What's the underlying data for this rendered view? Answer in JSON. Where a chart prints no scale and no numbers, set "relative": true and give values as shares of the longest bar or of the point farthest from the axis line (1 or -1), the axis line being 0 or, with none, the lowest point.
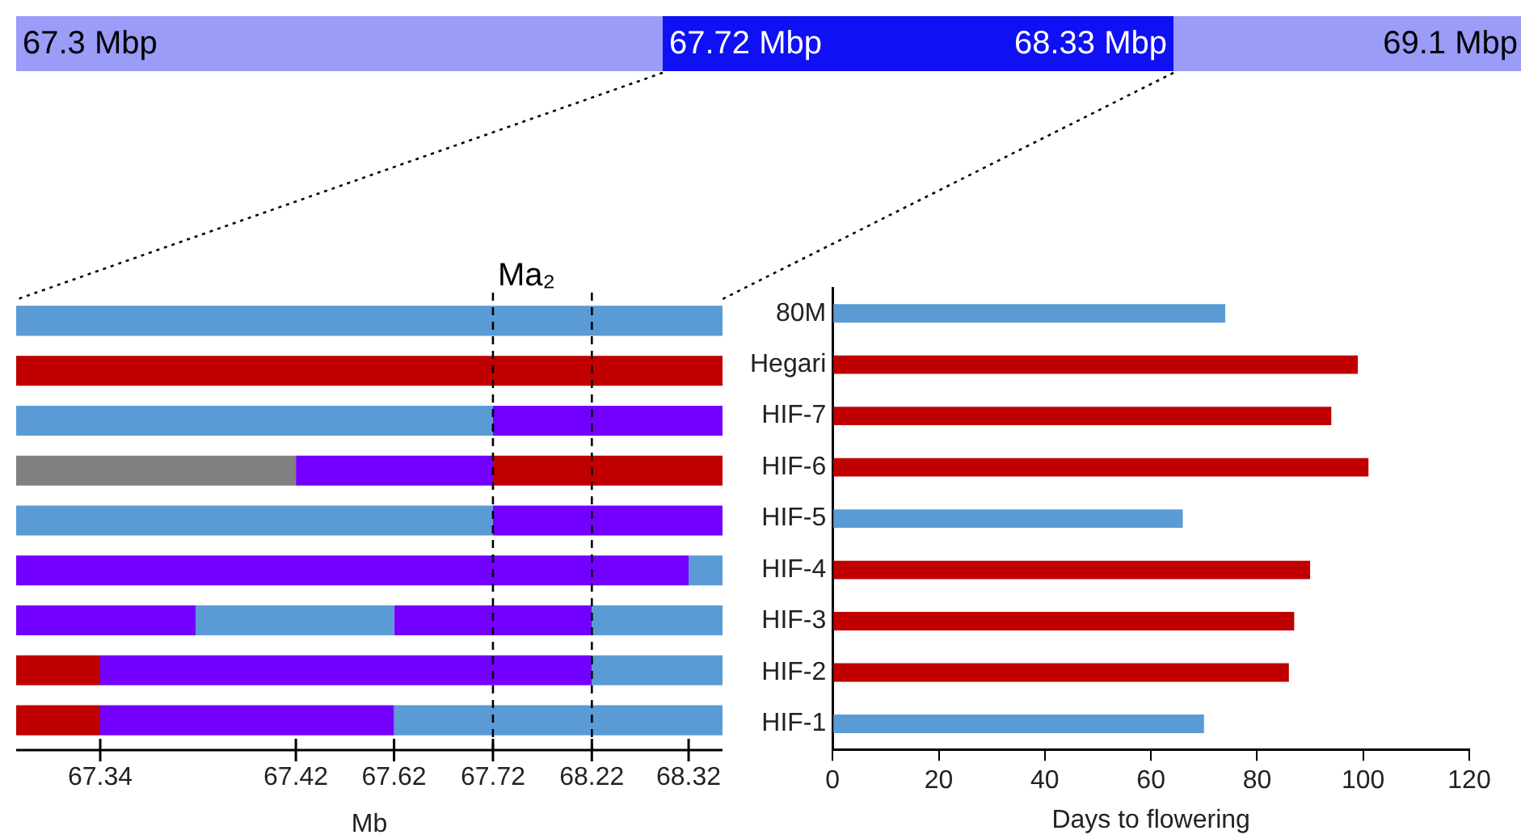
{
  "chart_data": [
    {
      "type": "other",
      "annotations": [
        "67.3 Mbp",
        "67.72 Mbp",
        "68.33 Mbp",
        "69.1 Mbp"
      ]
    },
    {
      "type": "bar",
      "orientation": "horizontal",
      "stacked": true,
      "relative": true,
      "categories": [
        null,
        null,
        null,
        null,
        null,
        null,
        null,
        null,
        null
      ],
      "series": [
        {
          "values": [
            1,
            1,
            0.675,
            0.396,
            0.675,
            0.952,
            0.254,
            0.119,
            0.119
          ],
          "colors": [
            "#5b9bd5",
            "#c00000",
            "#5b9bd5",
            "#808080",
            "#5b9bd5",
            "#7300ff",
            "#7300ff",
            "#c00000",
            "#c00000"
          ]
        },
        {
          "values": [
            null,
            null,
            0.325,
            0.279,
            0.325,
            0.048,
            0.281,
            0.696,
            0.416
          ],
          "colors": [
            null,
            null,
            "#7300ff",
            "#7300ff",
            "#7300ff",
            "#5b9bd5",
            "#5b9bd5",
            "#7300ff",
            "#7300ff"
          ]
        },
        {
          "values": [
            null,
            null,
            null,
            0.325,
            null,
            null,
            0.28,
            0.185,
            0.465
          ],
          "colors": [
            null,
            null,
            null,
            "#c00000",
            null,
            null,
            "#7300ff",
            "#5b9bd5",
            "#5b9bd5"
          ]
        },
        {
          "values": [
            null,
            null,
            null,
            null,
            null,
            null,
            0.185,
            null,
            null
          ],
          "colors": [
            null,
            null,
            null,
            null,
            null,
            null,
            "#5b9bd5",
            null,
            null
          ]
        }
      ],
      "xlabel": "Mb",
      "annotations": [
        {
          "text": "67.34",
          "x": 0.119
        },
        {
          "text": "67.42",
          "x": 0.396
        },
        {
          "text": "67.62",
          "x": 0.535
        },
        {
          "text": "67.72",
          "x": 0.675
        },
        {
          "text": "68.22",
          "x": 0.815
        },
        {
          "text": "68.32",
          "x": 0.952
        }
      ],
      "ref_lines": [
        {
          "axis": "x",
          "value": 0.675,
          "label": "Ma₂",
          "line_style": "dashed",
          "color": "#000000"
        },
        {
          "axis": "x",
          "value": 0.815,
          "line_style": "dashed",
          "color": "#000000"
        }
      ]
    },
    {
      "type": "bar",
      "orientation": "horizontal",
      "categories": [
        "80M",
        "Hegari",
        "HIF-7",
        "HIF-6",
        "HIF-5",
        "HIF-4",
        "HIF-3",
        "HIF-2",
        "HIF-1"
      ],
      "values": [
        74,
        99,
        94,
        101,
        66,
        90,
        87,
        86,
        70
      ],
      "colors": [
        "#5b9bd5",
        "#c00000",
        "#c00000",
        "#c00000",
        "#5b9bd5",
        "#c00000",
        "#c00000",
        "#c00000",
        "#5b9bd5"
      ],
      "xlim": [
        0,
        120
      ],
      "xticks": [
        0,
        20,
        40,
        60,
        80,
        100,
        120
      ],
      "xlabel": "Days to flowering"
    }
  ]
}
